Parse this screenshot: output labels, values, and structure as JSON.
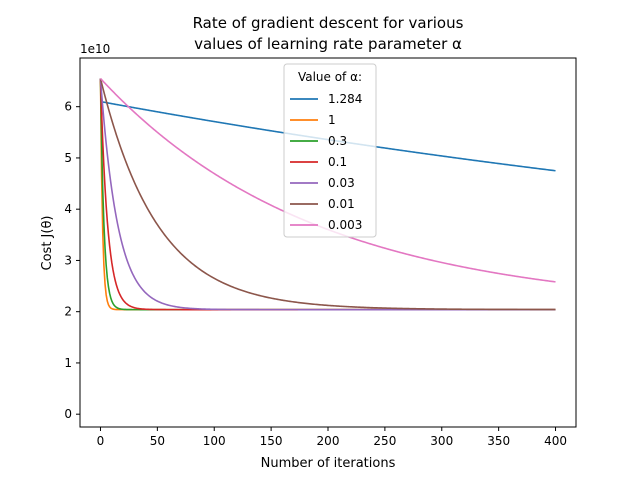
{
  "chart_data": {
    "type": "line",
    "title_line1": "Rate of gradient descent for various",
    "title_line2": "values of learning rate parameter α",
    "xlabel": "Number of iterations",
    "ylabel": "Cost J(θ)",
    "y_offset_label": "1e10",
    "xlim": [
      -18,
      418
    ],
    "ylim": [
      -0.25,
      6.95
    ],
    "x_ticks": [
      0,
      50,
      100,
      150,
      200,
      250,
      300,
      350,
      400
    ],
    "y_ticks": [
      0,
      1,
      2,
      3,
      4,
      5,
      6
    ],
    "grid": false,
    "legend_title": "Value of α:",
    "legend_position": "upper-center",
    "series_params": {
      "start": 6.55,
      "floor": 2.04,
      "iterations": 400
    },
    "series": [
      {
        "name": "1.284",
        "color": "#1f77b4",
        "kind": "diverge",
        "start": 6.1,
        "end": 4.75
      },
      {
        "name": "1",
        "color": "#ff7f0e",
        "kind": "decay",
        "rate": 0.55
      },
      {
        "name": "0.3",
        "color": "#2ca02c",
        "kind": "decay",
        "rate": 0.33
      },
      {
        "name": "0.1",
        "color": "#d62728",
        "kind": "decay",
        "rate": 0.16
      },
      {
        "name": "0.03",
        "color": "#9467bd",
        "kind": "decay",
        "rate": 0.066
      },
      {
        "name": "0.01",
        "color": "#8c564b",
        "kind": "decay",
        "rate": 0.02
      },
      {
        "name": "0.003",
        "color": "#e377c2",
        "kind": "decay",
        "rate": 0.0053
      }
    ]
  }
}
